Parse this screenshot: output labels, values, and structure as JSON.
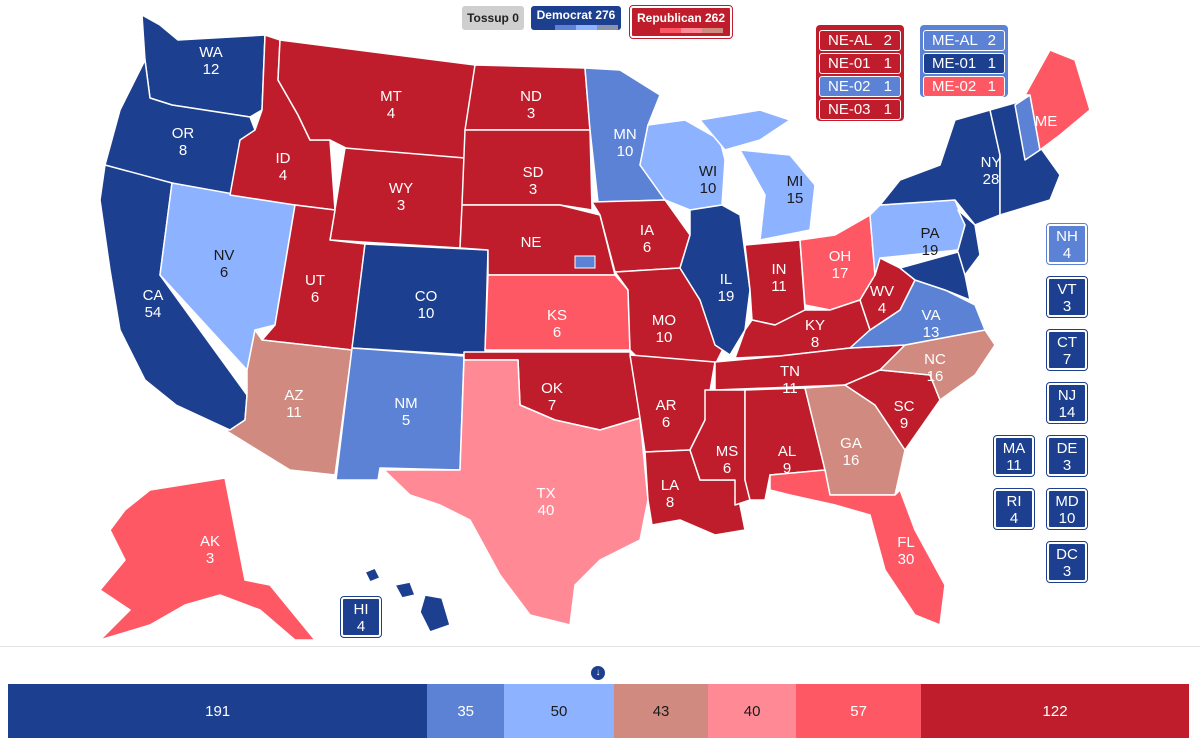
{
  "colors": {
    "safe_dem": "#1c3f8f",
    "likely_dem": "#5b82d4",
    "lean_dem": "#8db2ff",
    "tilt_rep": "#d08a80",
    "lean_rep": "#ff8a96",
    "likely_rep": "#ff5865",
    "safe_rep": "#bf1d2b",
    "tossup": "#cfcfcf"
  },
  "header": {
    "tossup_label": "Tossup 0",
    "democrat_label": "Democrat 276",
    "republican_label": "Republican 262"
  },
  "nebraska_split": [
    {
      "name": "NE-AL",
      "votes": "2",
      "rating": "safe_rep"
    },
    {
      "name": "NE-01",
      "votes": "1",
      "rating": "safe_rep"
    },
    {
      "name": "NE-02",
      "votes": "1",
      "rating": "likely_dem"
    },
    {
      "name": "NE-03",
      "votes": "1",
      "rating": "safe_rep"
    }
  ],
  "maine_split": [
    {
      "name": "ME-AL",
      "votes": "2",
      "rating": "likely_dem"
    },
    {
      "name": "ME-01",
      "votes": "1",
      "rating": "safe_dem"
    },
    {
      "name": "ME-02",
      "votes": "1",
      "rating": "likely_rep"
    }
  ],
  "state_labels": [
    {
      "abbr": "WA",
      "votes": "12"
    },
    {
      "abbr": "OR",
      "votes": "8"
    },
    {
      "abbr": "CA",
      "votes": "54"
    },
    {
      "abbr": "NV",
      "votes": "6"
    },
    {
      "abbr": "ID",
      "votes": "4"
    },
    {
      "abbr": "MT",
      "votes": "4"
    },
    {
      "abbr": "WY",
      "votes": "3"
    },
    {
      "abbr": "UT",
      "votes": "6"
    },
    {
      "abbr": "AZ",
      "votes": "11"
    },
    {
      "abbr": "CO",
      "votes": "10"
    },
    {
      "abbr": "NM",
      "votes": "5"
    },
    {
      "abbr": "ND",
      "votes": "3"
    },
    {
      "abbr": "SD",
      "votes": "3"
    },
    {
      "abbr": "NE",
      "votes": ""
    },
    {
      "abbr": "KS",
      "votes": "6"
    },
    {
      "abbr": "OK",
      "votes": "7"
    },
    {
      "abbr": "TX",
      "votes": "40"
    },
    {
      "abbr": "MN",
      "votes": "10"
    },
    {
      "abbr": "IA",
      "votes": "6"
    },
    {
      "abbr": "MO",
      "votes": "10"
    },
    {
      "abbr": "AR",
      "votes": "6"
    },
    {
      "abbr": "LA",
      "votes": "8"
    },
    {
      "abbr": "WI",
      "votes": "10"
    },
    {
      "abbr": "IL",
      "votes": "19"
    },
    {
      "abbr": "MI",
      "votes": "15"
    },
    {
      "abbr": "IN",
      "votes": "11"
    },
    {
      "abbr": "OH",
      "votes": "17"
    },
    {
      "abbr": "KY",
      "votes": "8"
    },
    {
      "abbr": "TN",
      "votes": "11"
    },
    {
      "abbr": "MS",
      "votes": "6"
    },
    {
      "abbr": "AL",
      "votes": "9"
    },
    {
      "abbr": "GA",
      "votes": "16"
    },
    {
      "abbr": "FL",
      "votes": "30"
    },
    {
      "abbr": "SC",
      "votes": "9"
    },
    {
      "abbr": "NC",
      "votes": "16"
    },
    {
      "abbr": "VA",
      "votes": "13"
    },
    {
      "abbr": "WV",
      "votes": "4"
    },
    {
      "abbr": "PA",
      "votes": "19"
    },
    {
      "abbr": "NY",
      "votes": "28"
    },
    {
      "abbr": "ME",
      "votes": ""
    },
    {
      "abbr": "AK",
      "votes": "3"
    },
    {
      "abbr": "HI",
      "votes": "4"
    }
  ],
  "small_states": [
    {
      "abbr": "NH",
      "votes": "4",
      "rating": "likely_dem"
    },
    {
      "abbr": "VT",
      "votes": "3",
      "rating": "safe_dem"
    },
    {
      "abbr": "CT",
      "votes": "7",
      "rating": "safe_dem"
    },
    {
      "abbr": "NJ",
      "votes": "14",
      "rating": "safe_dem"
    },
    {
      "abbr": "MA",
      "votes": "11",
      "rating": "safe_dem"
    },
    {
      "abbr": "DE",
      "votes": "3",
      "rating": "safe_dem"
    },
    {
      "abbr": "RI",
      "votes": "4",
      "rating": "safe_dem"
    },
    {
      "abbr": "MD",
      "votes": "10",
      "rating": "safe_dem"
    },
    {
      "abbr": "DC",
      "votes": "3",
      "rating": "safe_dem"
    }
  ],
  "tally_bar": [
    {
      "value": 191,
      "label": "191",
      "rating": "safe_dem"
    },
    {
      "value": 35,
      "label": "35",
      "rating": "likely_dem"
    },
    {
      "value": 50,
      "label": "50",
      "rating": "lean_dem"
    },
    {
      "value": 43,
      "label": "43",
      "rating": "tilt_rep"
    },
    {
      "value": 40,
      "label": "40",
      "rating": "lean_rep"
    },
    {
      "value": 57,
      "label": "57",
      "rating": "likely_rep"
    },
    {
      "value": 122,
      "label": "122",
      "rating": "safe_rep"
    }
  ],
  "marker_icon": "down-arrow-icon"
}
